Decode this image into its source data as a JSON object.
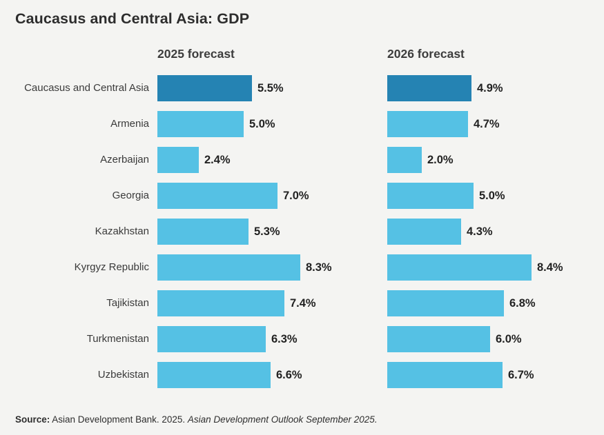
{
  "title": "Caucasus and Central Asia: GDP",
  "source": {
    "label": "Source:",
    "text": " Asian Development Bank. 2025. ",
    "publication": "Asian Development Outlook September 2025."
  },
  "colors": {
    "background": "#f4f4f2",
    "bar_light": "#55c1e4",
    "bar_dark": "#2583b3",
    "text": "#333333"
  },
  "chart_data": {
    "type": "bar",
    "orientation": "horizontal",
    "title": "Caucasus and Central Asia: GDP",
    "unit": "%",
    "value_labels": true,
    "grid": false,
    "legend_position": "column-headers",
    "xlim": [
      0,
      8.8
    ],
    "highlight_category": "Caucasus and Central Asia",
    "categories": [
      "Caucasus and Central Asia",
      "Armenia",
      "Azerbaijan",
      "Georgia",
      "Kazakhstan",
      "Kyrgyz Republic",
      "Tajikistan",
      "Turkmenistan",
      "Uzbekistan"
    ],
    "series": [
      {
        "name": "2025 forecast",
        "values": [
          5.5,
          5.0,
          2.4,
          7.0,
          5.3,
          8.3,
          7.4,
          6.3,
          6.6
        ]
      },
      {
        "name": "2026 forecast",
        "values": [
          4.9,
          4.7,
          2.0,
          5.0,
          4.3,
          8.4,
          6.8,
          6.0,
          6.7
        ]
      }
    ]
  }
}
